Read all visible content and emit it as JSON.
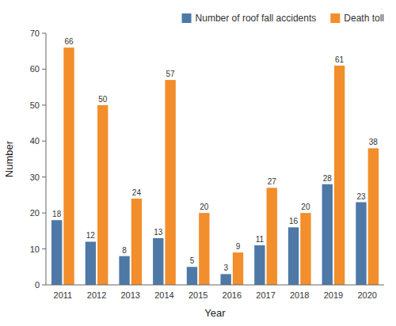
{
  "chart_data": {
    "type": "bar",
    "categories": [
      "2011",
      "2012",
      "2013",
      "2014",
      "2015",
      "2016",
      "2017",
      "2018",
      "2019",
      "2020"
    ],
    "series": [
      {
        "name": "Number of roof fall accidents",
        "values": [
          18,
          12,
          8,
          13,
          5,
          3,
          11,
          16,
          28,
          23
        ]
      },
      {
        "name": "Death toll",
        "values": [
          66,
          50,
          24,
          57,
          20,
          9,
          27,
          20,
          61,
          38
        ]
      }
    ],
    "x_label": "Year",
    "y_label": "Number",
    "ylim": [
      0,
      70
    ],
    "yticks": [
      0,
      10,
      20,
      30,
      40,
      50,
      60,
      70
    ],
    "data_labels": true,
    "legend": "upper right",
    "grid": false
  }
}
